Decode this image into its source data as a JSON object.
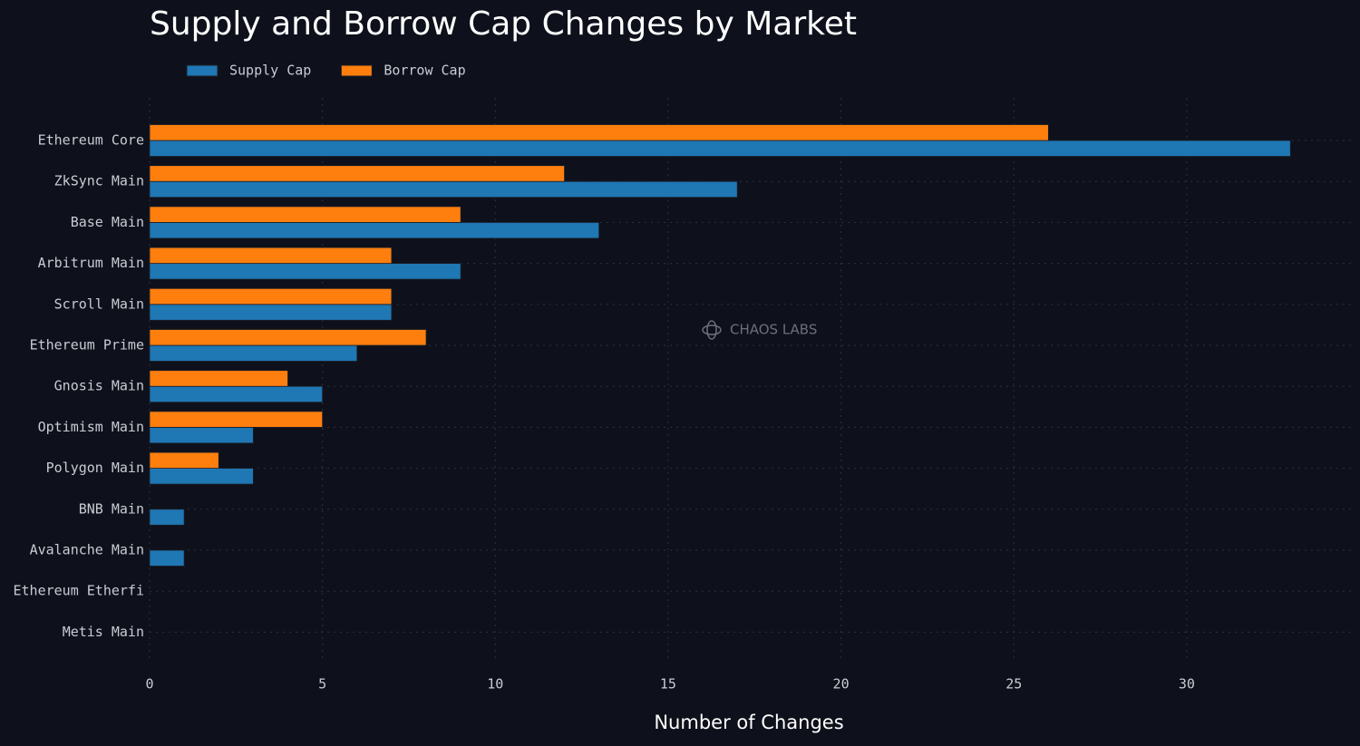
{
  "chart_data": {
    "type": "hbar",
    "title": "Supply and Borrow Cap Changes by Market",
    "x_label": "Number of Changes",
    "watermark": "CHAOS LABS",
    "categories": [
      "Ethereum Core",
      "ZkSync Main",
      "Base Main",
      "Arbitrum Main",
      "Scroll Main",
      "Ethereum Prime",
      "Gnosis Main",
      "Optimism Main",
      "Polygon Main",
      "BNB Main",
      "Avalanche Main",
      "Ethereum Etherfi",
      "Metis Main"
    ],
    "series": [
      {
        "name": "Supply Cap",
        "color": "#1f77b4",
        "values": [
          33,
          17,
          13,
          9,
          7,
          6,
          5,
          3,
          3,
          1,
          1,
          0,
          0
        ]
      },
      {
        "name": "Borrow Cap",
        "color": "#ff7f0e",
        "values": [
          26,
          12,
          9,
          7,
          7,
          8,
          4,
          5,
          2,
          0,
          0,
          0,
          0
        ]
      }
    ],
    "xlim": [
      0,
      34.75
    ],
    "xticks": [
      0,
      5,
      10,
      15,
      20,
      25,
      30
    ],
    "grid": true,
    "legend": "top-left"
  }
}
